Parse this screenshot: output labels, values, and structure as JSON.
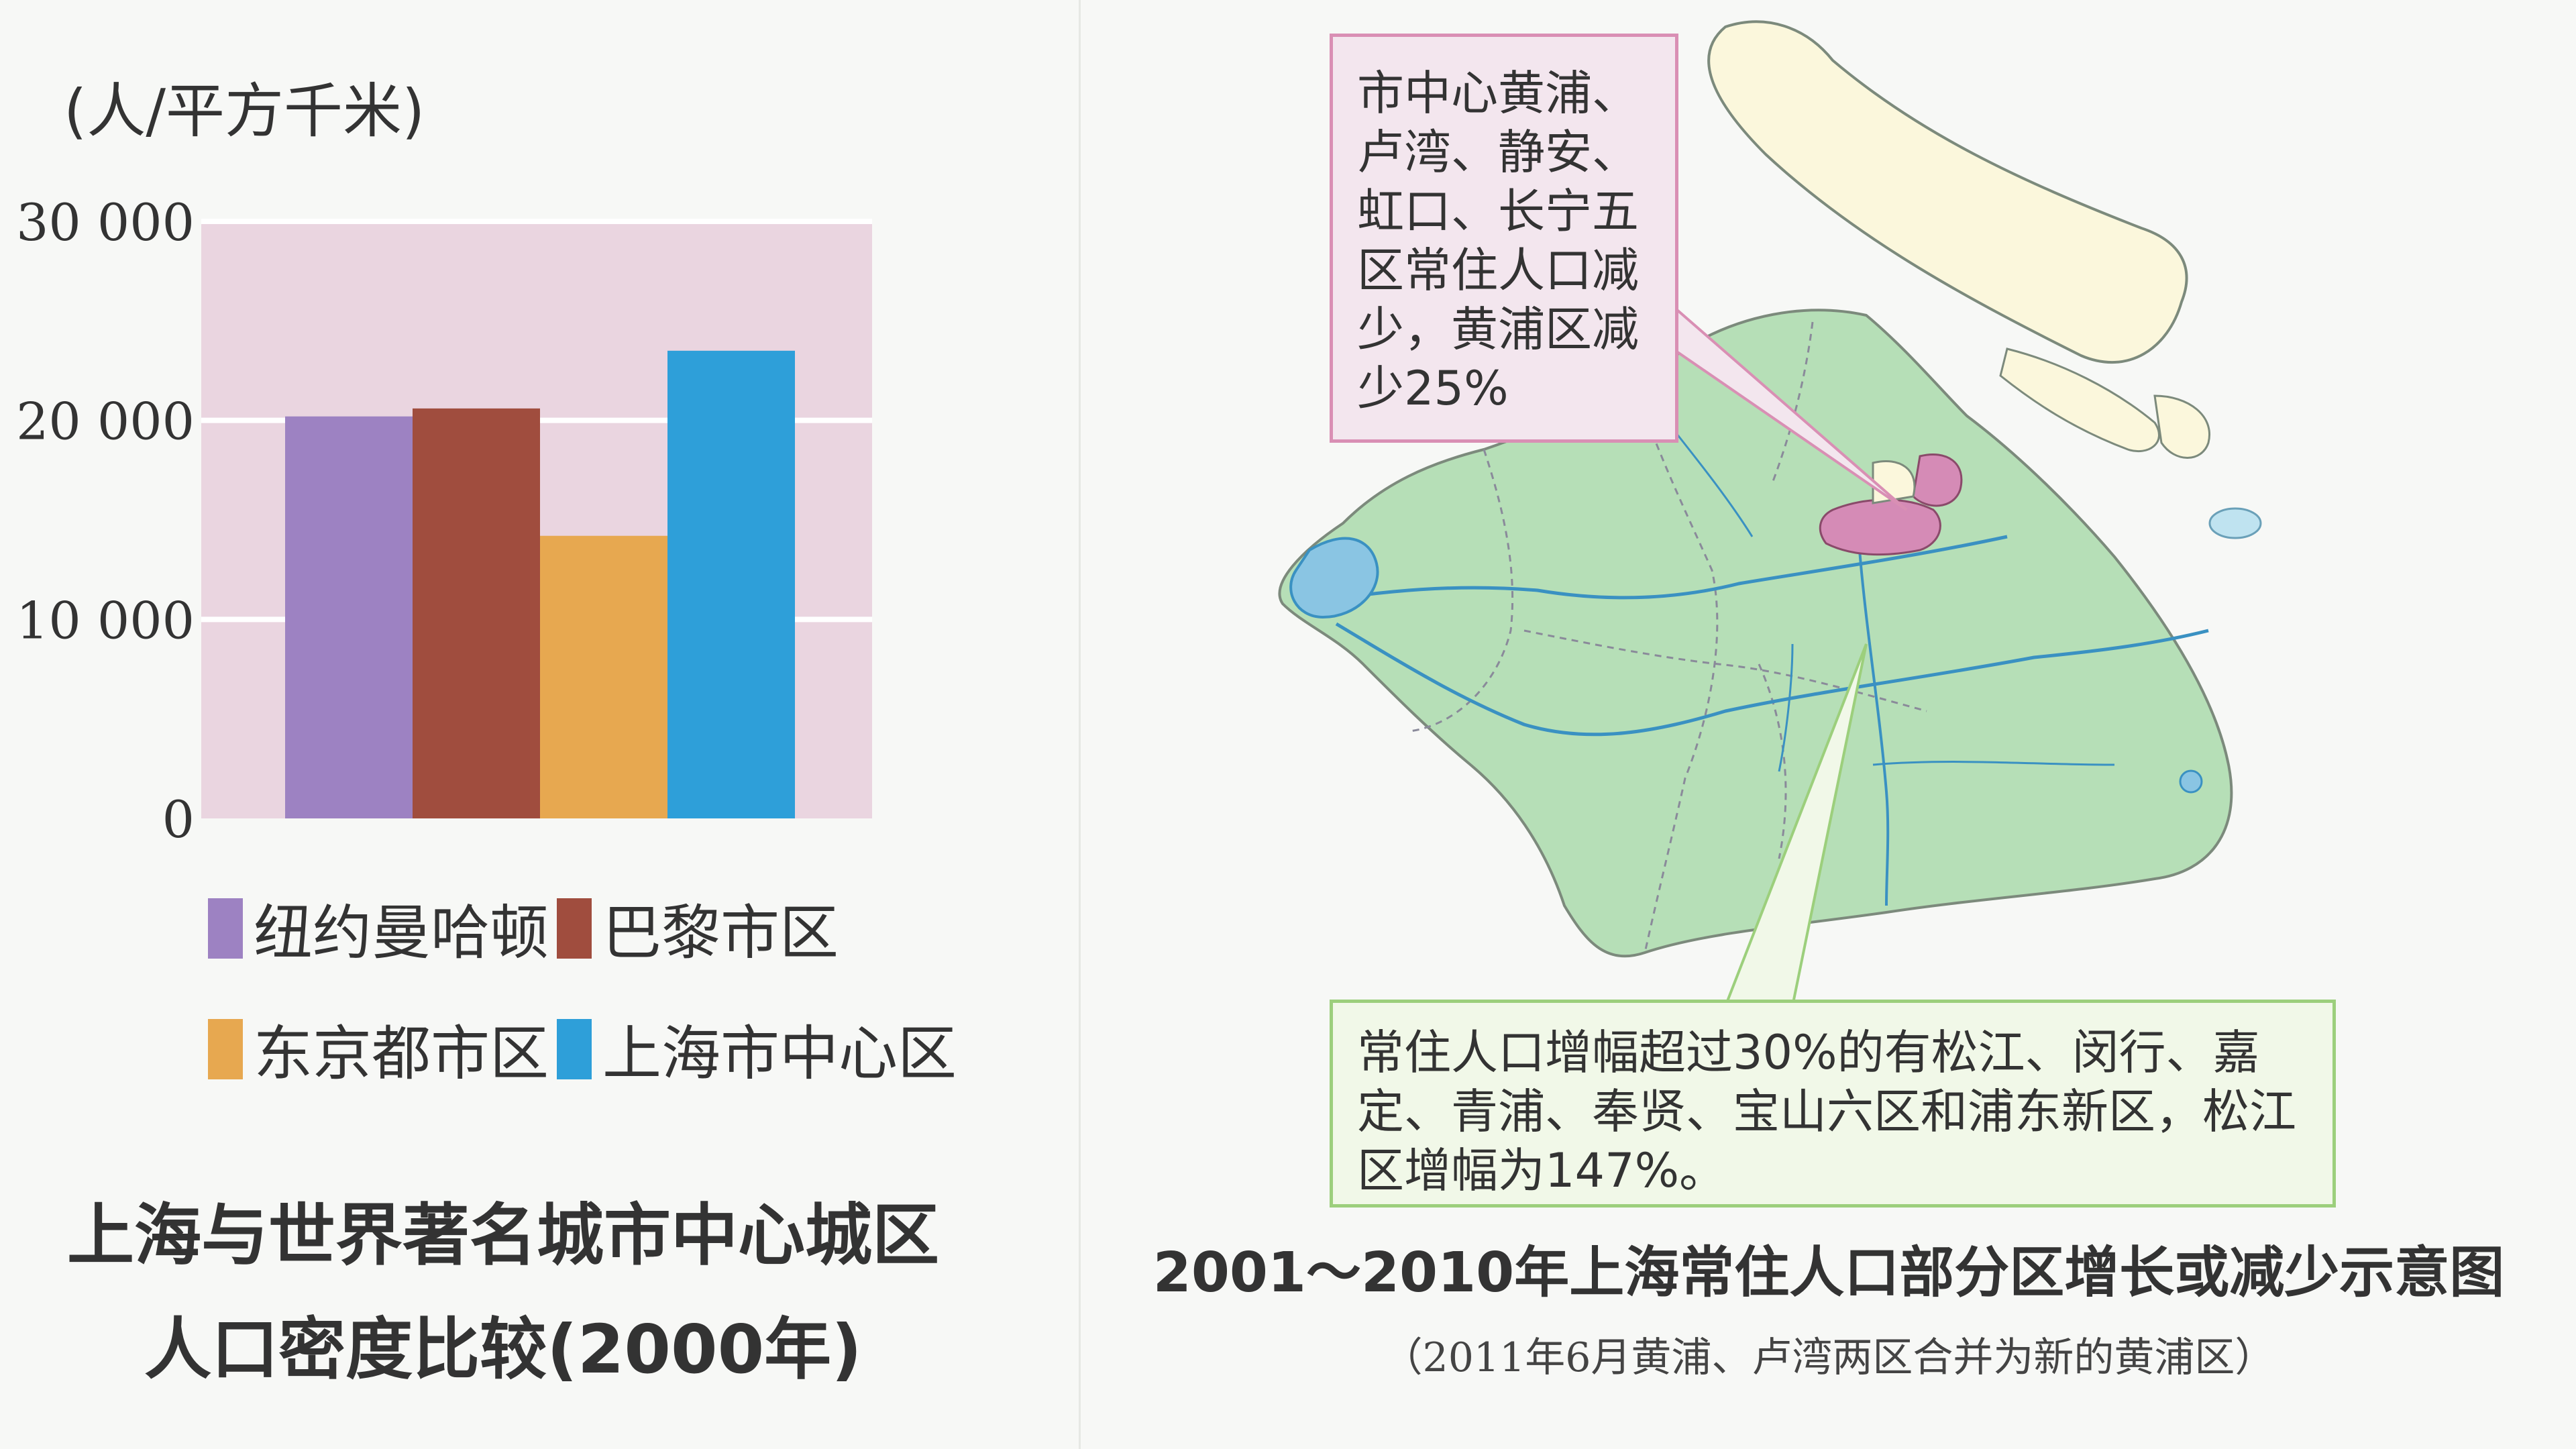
{
  "chart_data": {
    "type": "bar",
    "unit_label": "(人/平方千米)",
    "title_lines": [
      "上海与世界著名城市中心城区",
      "人口密度比较(2000年)"
    ],
    "ylim": [
      0,
      30000
    ],
    "yticks": [
      0,
      10000,
      20000,
      30000
    ],
    "ytick_labels": [
      "0",
      "10 000",
      "20 000",
      "30 000"
    ],
    "grid": true,
    "legend_position": "bottom",
    "categories": [
      "纽约曼哈顿",
      "巴黎市区",
      "东京都市区",
      "上海市中心区"
    ],
    "values": [
      20200,
      20600,
      14200,
      23500
    ],
    "colors": [
      "#9d82c2",
      "#a04d3e",
      "#e7a850",
      "#2e9fd9"
    ],
    "plot_background": "#ead5e0"
  },
  "map": {
    "title": "2001～2010年上海常住人口部分区增长或减少示意图",
    "note": "（2011年6月黄浦、卢湾两区合并为新的黄浦区）",
    "callout_decrease": "市中心黄浦、卢湾、静安、虹口、长宁五区常住人口减少，黄浦区减少25%",
    "callout_increase": "常住人口增幅超过30%的有松江、闵行、嘉定、青浦、奉贤、宝山六区和浦东新区，松江区增幅为147%。",
    "land_color": "#b6dfb7",
    "island_color": "#fbf7dc",
    "decrease_color": "#d58bb6",
    "water_color": "#8ac5e3"
  }
}
